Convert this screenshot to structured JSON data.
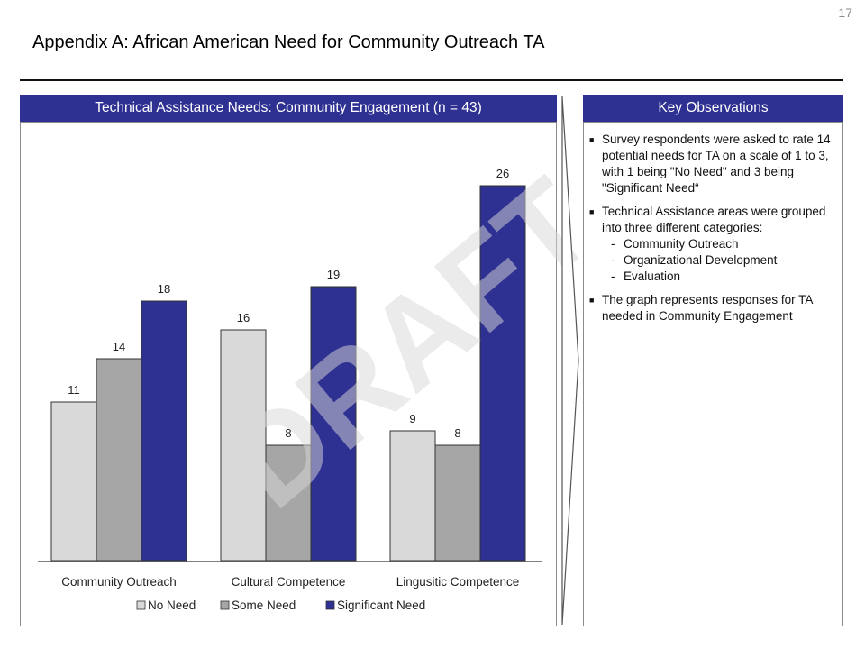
{
  "page_number": "17",
  "title": "Appendix A: African American Need for Community Outreach TA",
  "chart_panel": {
    "header": "Technical Assistance Needs: Community Engagement (n = 43)"
  },
  "observations_panel": {
    "header": "Key Observations",
    "items": [
      {
        "text": "Survey respondents were asked to rate 14 potential needs for TA on a scale of 1 to 3, with 1 being \"No Need\" and 3 being \"Significant Need“",
        "subitems": []
      },
      {
        "text": "Technical Assistance areas were grouped into three different categories:",
        "subitems": [
          "Community Outreach",
          "Organizational Development",
          "Evaluation"
        ]
      },
      {
        "text": "The graph represents responses for TA needed in Community Engagement",
        "subitems": []
      }
    ]
  },
  "watermark": "DRAFT",
  "chart_data": {
    "type": "bar",
    "categories": [
      "Community Outreach",
      "Cultural Competence",
      "Lingusitic Competence"
    ],
    "series": [
      {
        "name": "No Need",
        "values": [
          11,
          16,
          9
        ],
        "color": "#d9d9d9"
      },
      {
        "name": "Some Need",
        "values": [
          14,
          8,
          8
        ],
        "color": "#a6a6a6"
      },
      {
        "name": "Significant Need",
        "values": [
          18,
          19,
          26
        ],
        "color": "#2e3192"
      }
    ],
    "ylim": [
      0,
      30
    ],
    "grid": false,
    "legend": "bottom",
    "data_labels": true
  }
}
